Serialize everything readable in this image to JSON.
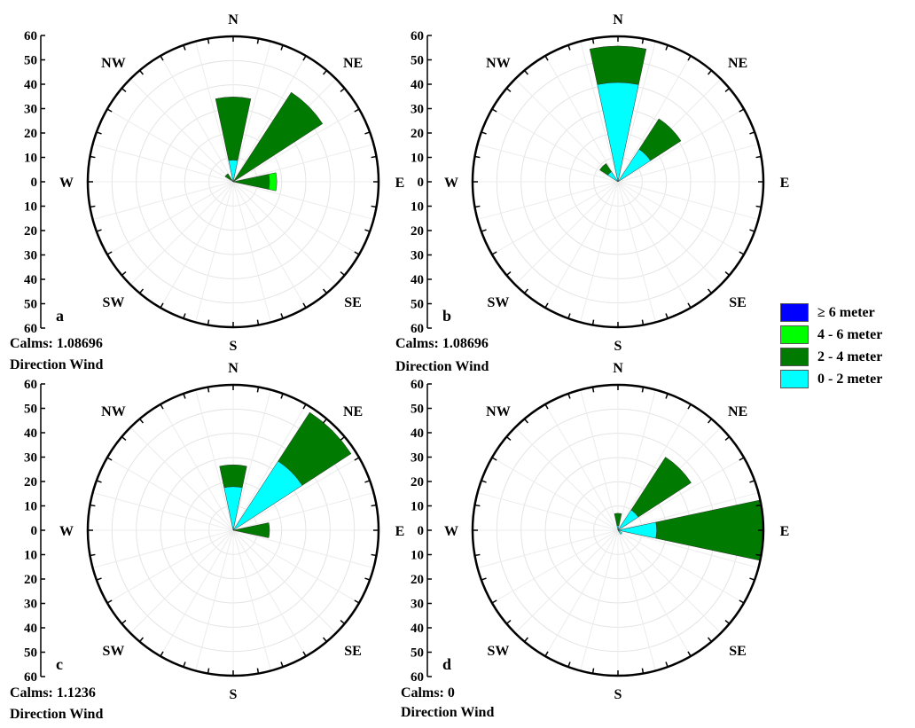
{
  "chart_data": [
    {
      "type": "wind-rose",
      "panel_label": "a",
      "calms": "Calms: 1.08696",
      "caption": "Direction Wind",
      "directions": [
        "N",
        "NE",
        "E",
        "SE",
        "S",
        "SW",
        "W",
        "NW"
      ],
      "radial_ticks": [
        "60",
        "50",
        "40",
        "30",
        "20",
        "10",
        "0",
        "10",
        "20",
        "30",
        "40",
        "50",
        "60"
      ],
      "rmax": 60,
      "sectors": [
        {
          "direction": 0,
          "bands": [
            9,
            26,
            0,
            0
          ]
        },
        {
          "direction": 45,
          "bands": [
            0,
            44,
            0,
            0
          ]
        },
        {
          "direction": 90,
          "bands": [
            0,
            15,
            3,
            0
          ]
        },
        {
          "direction": 315,
          "bands": [
            1,
            3,
            0,
            0
          ]
        }
      ]
    },
    {
      "type": "wind-rose",
      "panel_label": "b",
      "calms": "Calms: 1.08696",
      "caption": "Direction Wind",
      "directions": [
        "N",
        "NE",
        "E",
        "SE",
        "S",
        "SW",
        "W",
        "NW"
      ],
      "radial_ticks": [
        "60",
        "50",
        "40",
        "30",
        "20",
        "10",
        "0",
        "10",
        "20",
        "30",
        "40",
        "50",
        "60"
      ],
      "rmax": 60,
      "sectors": [
        {
          "direction": 0,
          "bands": [
            41,
            15,
            0,
            0
          ]
        },
        {
          "direction": 45,
          "bands": [
            16,
            15,
            0,
            0
          ]
        },
        {
          "direction": 315,
          "bands": [
            5,
            4,
            0,
            0
          ]
        }
      ]
    },
    {
      "type": "wind-rose",
      "panel_label": "c",
      "calms": "Calms: 1.1236",
      "caption": "Direction Wind",
      "directions": [
        "N",
        "NE",
        "E",
        "SE",
        "S",
        "SW",
        "W",
        "NW"
      ],
      "radial_ticks": [
        "60",
        "50",
        "40",
        "30",
        "20",
        "10",
        "0",
        "10",
        "20",
        "30",
        "40",
        "50",
        "60"
      ],
      "rmax": 60,
      "sectors": [
        {
          "direction": 0,
          "bands": [
            18,
            9,
            0,
            0
          ]
        },
        {
          "direction": 45,
          "bands": [
            34,
            24,
            0,
            0
          ]
        },
        {
          "direction": 90,
          "bands": [
            0,
            15,
            0,
            0
          ]
        }
      ]
    },
    {
      "type": "wind-rose",
      "panel_label": "d",
      "calms": "Calms: 0",
      "caption": "Direction Wind",
      "directions": [
        "N",
        "NE",
        "E",
        "SE",
        "S",
        "SW",
        "W",
        "NW"
      ],
      "radial_ticks": [
        "60",
        "50",
        "40",
        "30",
        "20",
        "10",
        "0",
        "10",
        "20",
        "30",
        "40",
        "50",
        "60"
      ],
      "rmax": 60,
      "sectors": [
        {
          "direction": 0,
          "bands": [
            2,
            5,
            0,
            0
          ]
        },
        {
          "direction": 45,
          "bands": [
            10,
            26,
            0,
            0
          ]
        },
        {
          "direction": 90,
          "bands": [
            16,
            44,
            0,
            0
          ]
        },
        {
          "direction": 135,
          "bands": [
            2,
            0,
            0,
            0
          ]
        }
      ]
    }
  ],
  "legend": {
    "items": [
      {
        "label": "≥  6 meter",
        "color": "#0000ff"
      },
      {
        "label": "4 - 6 meter",
        "color": "#00ff00"
      },
      {
        "label": "2 - 4 meter",
        "color": "#007a00"
      },
      {
        "label": "0 - 2 meter",
        "color": "#00ffff"
      }
    ]
  },
  "band_colors": [
    "#00ffff",
    "#007a00",
    "#00ff00",
    "#0000ff"
  ]
}
